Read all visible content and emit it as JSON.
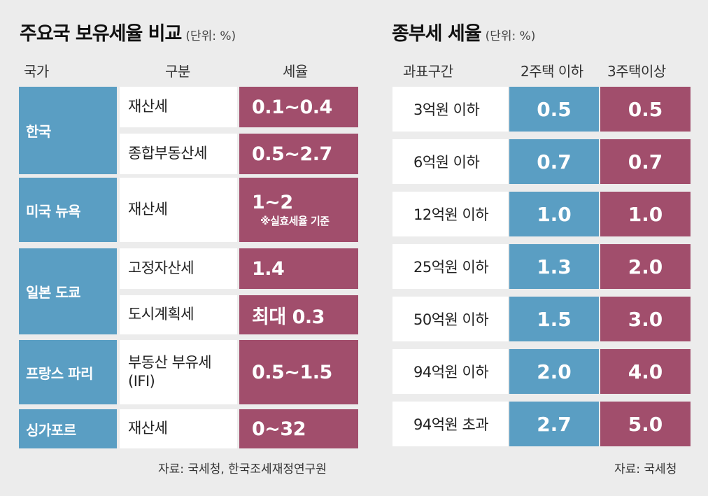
{
  "chart_data": [
    {
      "type": "table",
      "title": "주요국 보유세율 비교",
      "unit": "(단위: %)",
      "columns": [
        "국가",
        "구분",
        "세율"
      ],
      "groups": [
        {
          "country": "한국",
          "rows": [
            {
              "kind": "재산세",
              "rate": "0.1~0.4"
            },
            {
              "kind": "종합부동산세",
              "rate": "0.5~2.7"
            }
          ]
        },
        {
          "country": "미국 뉴욕",
          "rows": [
            {
              "kind": "재산세",
              "rate": "1~2",
              "note": "※실효세율 기준"
            }
          ]
        },
        {
          "country": "일본 도쿄",
          "rows": [
            {
              "kind": "고정자산세",
              "rate": "1.4"
            },
            {
              "kind": "도시계획세",
              "rate": "최대 0.3"
            }
          ]
        },
        {
          "country": "프랑스 파리",
          "rows": [
            {
              "kind": "부동산 부유세\n(IFI)",
              "rate": "0.5~1.5"
            }
          ]
        },
        {
          "country": "싱가포르",
          "rows": [
            {
              "kind": "재산세",
              "rate": "0~32"
            }
          ]
        }
      ],
      "source": "자료: 국세청, 한국조세재정연구원"
    },
    {
      "type": "table",
      "title": "종부세 세율",
      "unit": "(단위: %)",
      "columns": [
        "과표구간",
        "2주택 이하",
        "3주택이상"
      ],
      "rows": [
        {
          "bracket": "3억원 이하",
          "two_or_less": "0.5",
          "three_or_more": "0.5"
        },
        {
          "bracket": "6억원 이하",
          "two_or_less": "0.7",
          "three_or_more": "0.7"
        },
        {
          "bracket": "12억원 이하",
          "two_or_less": "1.0",
          "three_or_more": "1.0"
        },
        {
          "bracket": "25억원 이하",
          "two_or_less": "1.3",
          "three_or_more": "2.0"
        },
        {
          "bracket": "50억원 이하",
          "two_or_less": "1.5",
          "three_or_more": "3.0"
        },
        {
          "bracket": "94억원 이하",
          "two_or_less": "2.0",
          "three_or_more": "4.0"
        },
        {
          "bracket": "94억원 초과",
          "two_or_less": "2.7",
          "three_or_more": "5.0"
        }
      ],
      "source": "자료: 국세청"
    }
  ],
  "colors": {
    "blue": "#5a9ec3",
    "pink": "#a14e6c",
    "white": "#ffffff",
    "background": "#ececec"
  }
}
